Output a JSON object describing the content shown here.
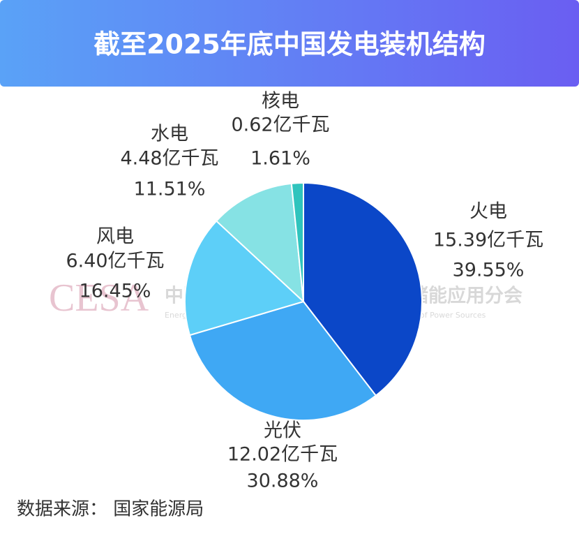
{
  "chart_data": {
    "type": "pie",
    "title": "截至2025年底中国发电装机结构",
    "categories": [
      "火电",
      "光伏",
      "风电",
      "水电",
      "核电"
    ],
    "values": [
      39.55,
      30.88,
      16.45,
      11.51,
      1.61
    ],
    "value_labels": [
      "39.55%",
      "30.88%",
      "16.45%",
      "11.51%",
      "1.61%"
    ],
    "capacity": [
      15.39,
      12.02,
      6.4,
      4.48,
      0.62
    ],
    "capacity_labels": [
      "15.39亿千瓦",
      "12.02亿千瓦",
      "6.40亿千瓦",
      "4.48亿千瓦",
      "0.62亿千瓦"
    ],
    "colors": [
      "#0b47c8",
      "#3fa8f4",
      "#5dcff8",
      "#86e2e4",
      "#2fc4bd"
    ],
    "source": "数据来源： 国家能源局",
    "watermark": {
      "logo": "CESA",
      "name": "中国化学与物理电源行业协会储能应用分会",
      "english": "Energy Storage Application Branch of China Industrial Association of Power Sources"
    }
  }
}
